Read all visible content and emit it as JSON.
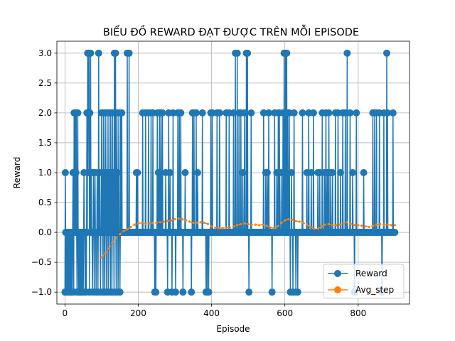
{
  "chart_data": {
    "type": "line",
    "title": "BIỂU ĐỒ REWARD ĐẠT ĐƯỢC TRÊN MỖI EPISODE",
    "xlabel": "Episode",
    "ylabel": "Reward",
    "xlim": [
      -22,
      940
    ],
    "ylim": [
      -1.2,
      3.2
    ],
    "xticks": [
      0,
      200,
      400,
      600,
      800
    ],
    "yticks": [
      -1.0,
      -0.5,
      0.0,
      0.5,
      1.0,
      1.5,
      2.0,
      2.5,
      3.0
    ],
    "xtick_labels": [
      "0",
      "200",
      "400",
      "600",
      "800"
    ],
    "ytick_labels": [
      "−1.0",
      "−0.5",
      "0.0",
      "0.5",
      "1.0",
      "1.5",
      "2.0",
      "2.5",
      "3.0"
    ],
    "grid": true,
    "legend_position": "lower-right",
    "series": [
      {
        "name": "Reward",
        "color": "#1f77b4",
        "style": "line-marker",
        "points_nonzero": [
          [
            0,
            -1
          ],
          [
            1,
            1
          ],
          [
            3,
            -1
          ],
          [
            5,
            -1
          ],
          [
            8,
            -1
          ],
          [
            10,
            -1
          ],
          [
            12,
            -1
          ],
          [
            15,
            -1
          ],
          [
            18,
            -1
          ],
          [
            20,
            -1
          ],
          [
            22,
            1
          ],
          [
            24,
            -1
          ],
          [
            25,
            2
          ],
          [
            27,
            1
          ],
          [
            28,
            2
          ],
          [
            30,
            1
          ],
          [
            31,
            2
          ],
          [
            33,
            -1
          ],
          [
            35,
            2
          ],
          [
            37,
            -1
          ],
          [
            40,
            -1
          ],
          [
            43,
            -1
          ],
          [
            45,
            -1
          ],
          [
            48,
            -1
          ],
          [
            50,
            -1
          ],
          [
            52,
            1
          ],
          [
            55,
            -1
          ],
          [
            58,
            -1
          ],
          [
            60,
            2
          ],
          [
            62,
            3
          ],
          [
            63,
            1
          ],
          [
            64,
            3
          ],
          [
            65,
            2
          ],
          [
            66,
            3
          ],
          [
            67,
            -1
          ],
          [
            68,
            2
          ],
          [
            70,
            3
          ],
          [
            72,
            1
          ],
          [
            75,
            -1
          ],
          [
            78,
            1
          ],
          [
            80,
            -1
          ],
          [
            82,
            1
          ],
          [
            85,
            -1
          ],
          [
            88,
            1
          ],
          [
            90,
            -1
          ],
          [
            92,
            3
          ],
          [
            95,
            1
          ],
          [
            97,
            -1
          ],
          [
            100,
            2
          ],
          [
            102,
            1
          ],
          [
            104,
            -1
          ],
          [
            105,
            2
          ],
          [
            107,
            1
          ],
          [
            108,
            -1
          ],
          [
            110,
            2
          ],
          [
            112,
            1
          ],
          [
            113,
            -1
          ],
          [
            115,
            2
          ],
          [
            117,
            1
          ],
          [
            118,
            -1
          ],
          [
            120,
            2
          ],
          [
            122,
            1
          ],
          [
            124,
            -1
          ],
          [
            125,
            2
          ],
          [
            127,
            1
          ],
          [
            128,
            -1
          ],
          [
            130,
            2
          ],
          [
            132,
            1
          ],
          [
            134,
            -1
          ],
          [
            135,
            3
          ],
          [
            137,
            1
          ],
          [
            138,
            3
          ],
          [
            140,
            -1
          ],
          [
            142,
            2
          ],
          [
            144,
            1
          ],
          [
            145,
            -1
          ],
          [
            147,
            2
          ],
          [
            150,
            -1
          ],
          [
            152,
            2
          ],
          [
            155,
            2
          ],
          [
            170,
            3
          ],
          [
            175,
            3
          ],
          [
            195,
            1
          ],
          [
            198,
            1
          ],
          [
            212,
            2
          ],
          [
            220,
            2
          ],
          [
            228,
            2
          ],
          [
            235,
            2
          ],
          [
            240,
            2
          ],
          [
            245,
            -1
          ],
          [
            248,
            -1
          ],
          [
            252,
            2
          ],
          [
            255,
            1
          ],
          [
            258,
            2
          ],
          [
            262,
            2
          ],
          [
            266,
            2
          ],
          [
            275,
            1
          ],
          [
            280,
            -1
          ],
          [
            283,
            2
          ],
          [
            287,
            1
          ],
          [
            292,
            -1
          ],
          [
            295,
            2
          ],
          [
            302,
            -1
          ],
          [
            308,
            2
          ],
          [
            312,
            2
          ],
          [
            316,
            2
          ],
          [
            322,
            -1
          ],
          [
            328,
            1
          ],
          [
            345,
            -1
          ],
          [
            348,
            2
          ],
          [
            352,
            2
          ],
          [
            358,
            2
          ],
          [
            362,
            1
          ],
          [
            375,
            2
          ],
          [
            385,
            -1
          ],
          [
            388,
            -1
          ],
          [
            392,
            -1
          ],
          [
            398,
            2
          ],
          [
            402,
            2
          ],
          [
            415,
            2
          ],
          [
            422,
            2
          ],
          [
            440,
            2
          ],
          [
            448,
            2
          ],
          [
            460,
            2
          ],
          [
            465,
            3
          ],
          [
            470,
            3
          ],
          [
            475,
            2
          ],
          [
            480,
            2
          ],
          [
            485,
            1
          ],
          [
            490,
            2
          ],
          [
            495,
            3
          ],
          [
            498,
            3
          ],
          [
            502,
            -1
          ],
          [
            508,
            2
          ],
          [
            542,
            2
          ],
          [
            548,
            1
          ],
          [
            552,
            1
          ],
          [
            556,
            2
          ],
          [
            565,
            -1
          ],
          [
            572,
            2
          ],
          [
            578,
            1
          ],
          [
            582,
            2
          ],
          [
            585,
            2
          ],
          [
            590,
            1
          ],
          [
            595,
            2
          ],
          [
            598,
            3
          ],
          [
            600,
            2
          ],
          [
            602,
            3
          ],
          [
            605,
            3
          ],
          [
            608,
            2
          ],
          [
            612,
            2
          ],
          [
            615,
            -1
          ],
          [
            618,
            1
          ],
          [
            622,
            -1
          ],
          [
            625,
            2
          ],
          [
            630,
            -1
          ],
          [
            635,
            -1
          ],
          [
            648,
            2
          ],
          [
            660,
            1
          ],
          [
            665,
            2
          ],
          [
            672,
            1
          ],
          [
            678,
            2
          ],
          [
            690,
            1
          ],
          [
            695,
            1
          ],
          [
            702,
            2
          ],
          [
            708,
            1
          ],
          [
            712,
            2
          ],
          [
            716,
            1
          ],
          [
            720,
            2
          ],
          [
            725,
            1
          ],
          [
            730,
            1
          ],
          [
            738,
            2
          ],
          [
            745,
            2
          ],
          [
            752,
            1
          ],
          [
            758,
            2
          ],
          [
            765,
            2
          ],
          [
            770,
            3
          ],
          [
            778,
            2
          ],
          [
            785,
            1
          ],
          [
            790,
            -1
          ],
          [
            795,
            2
          ],
          [
            815,
            1
          ],
          [
            840,
            2
          ],
          [
            845,
            2
          ],
          [
            850,
            2
          ],
          [
            858,
            2
          ],
          [
            865,
            -1
          ],
          [
            870,
            2
          ],
          [
            878,
            3
          ],
          [
            880,
            2
          ],
          [
            895,
            2
          ]
        ],
        "default_value": 0,
        "x_range": [
          0,
          900
        ]
      },
      {
        "name": "Avg_step",
        "color": "#ff7f0e",
        "style": "dashed",
        "points": [
          [
            100,
            -0.42
          ],
          [
            110,
            -0.35
          ],
          [
            120,
            -0.27
          ],
          [
            130,
            -0.18
          ],
          [
            140,
            -0.1
          ],
          [
            150,
            -0.03
          ],
          [
            160,
            0.02
          ],
          [
            170,
            0.05
          ],
          [
            180,
            0.09
          ],
          [
            190,
            0.13
          ],
          [
            200,
            0.15
          ],
          [
            210,
            0.16
          ],
          [
            220,
            0.14
          ],
          [
            230,
            0.15
          ],
          [
            240,
            0.16
          ],
          [
            250,
            0.16
          ],
          [
            260,
            0.17
          ],
          [
            270,
            0.18
          ],
          [
            280,
            0.19
          ],
          [
            290,
            0.2
          ],
          [
            300,
            0.22
          ],
          [
            310,
            0.23
          ],
          [
            320,
            0.22
          ],
          [
            330,
            0.2
          ],
          [
            340,
            0.18
          ],
          [
            350,
            0.16
          ],
          [
            360,
            0.16
          ],
          [
            370,
            0.17
          ],
          [
            380,
            0.16
          ],
          [
            390,
            0.14
          ],
          [
            400,
            0.1
          ],
          [
            410,
            0.08
          ],
          [
            420,
            0.07
          ],
          [
            430,
            0.07
          ],
          [
            440,
            0.08
          ],
          [
            450,
            0.08
          ],
          [
            460,
            0.1
          ],
          [
            470,
            0.12
          ],
          [
            480,
            0.14
          ],
          [
            490,
            0.15
          ],
          [
            500,
            0.14
          ],
          [
            510,
            0.13
          ],
          [
            520,
            0.13
          ],
          [
            530,
            0.12
          ],
          [
            540,
            0.13
          ],
          [
            550,
            0.11
          ],
          [
            560,
            0.08
          ],
          [
            570,
            0.07
          ],
          [
            580,
            0.1
          ],
          [
            590,
            0.16
          ],
          [
            600,
            0.2
          ],
          [
            610,
            0.22
          ],
          [
            620,
            0.21
          ],
          [
            630,
            0.19
          ],
          [
            640,
            0.18
          ],
          [
            650,
            0.16
          ],
          [
            660,
            0.13
          ],
          [
            670,
            0.09
          ],
          [
            680,
            0.06
          ],
          [
            690,
            0.06
          ],
          [
            700,
            0.1
          ],
          [
            710,
            0.13
          ],
          [
            720,
            0.14
          ],
          [
            730,
            0.12
          ],
          [
            740,
            0.12
          ],
          [
            750,
            0.13
          ],
          [
            760,
            0.15
          ],
          [
            770,
            0.17
          ],
          [
            780,
            0.14
          ],
          [
            790,
            0.12
          ],
          [
            800,
            0.12
          ],
          [
            810,
            0.11
          ],
          [
            820,
            0.1
          ],
          [
            830,
            0.09
          ],
          [
            840,
            0.11
          ],
          [
            850,
            0.13
          ],
          [
            860,
            0.14
          ],
          [
            870,
            0.13
          ],
          [
            880,
            0.13
          ],
          [
            890,
            0.12
          ],
          [
            900,
            0.12
          ]
        ]
      }
    ]
  }
}
